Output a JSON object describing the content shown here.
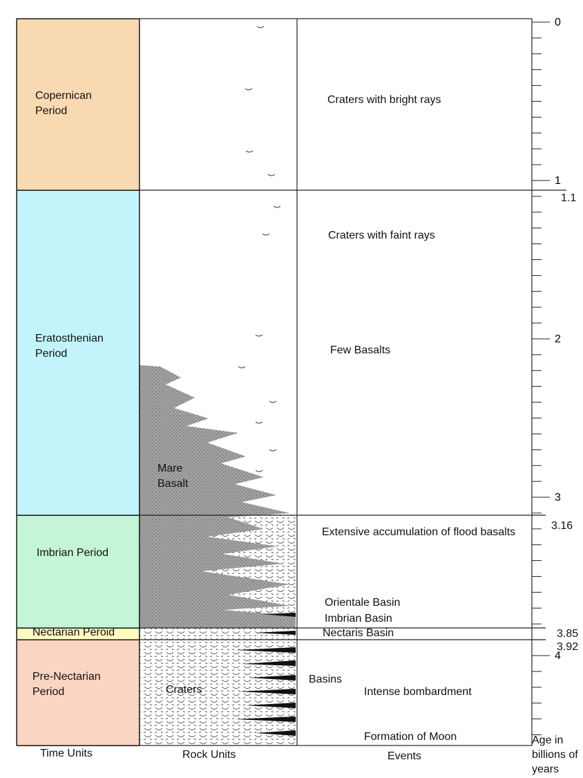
{
  "columns": {
    "time_units": "Time Units",
    "rock_units": "Rock Units",
    "events": "Events",
    "age": "Age in billions of years"
  },
  "periods": [
    {
      "name": "Copernican Period",
      "color": "#f9d9b1"
    },
    {
      "name": "Eratosthenian Period",
      "color": "#c3f4fb"
    },
    {
      "name": "Imbrian Period",
      "color": "#c3f5d6"
    },
    {
      "name": "Nectarian Peroid",
      "color": "#fdfbc0"
    },
    {
      "name": "Pre-Nectarian Period",
      "color": "#fad5c1"
    }
  ],
  "rock_units": {
    "mare_basalt": "Mare Basalt",
    "craters": "Craters"
  },
  "events": [
    "Craters with bright rays",
    "Craters with faint rays",
    "Few Basalts",
    "Extensive accumulation of flood basalts",
    "Orientale Basin",
    "Imbrian Basin",
    "Nectaris Basin",
    "Basins",
    "Intense bombardment",
    "Formation of Moon"
  ],
  "age_axis": {
    "ticks": [
      0,
      1,
      2,
      3,
      4
    ],
    "boundaries": [
      1.1,
      3.16,
      3.85,
      3.92
    ]
  }
}
